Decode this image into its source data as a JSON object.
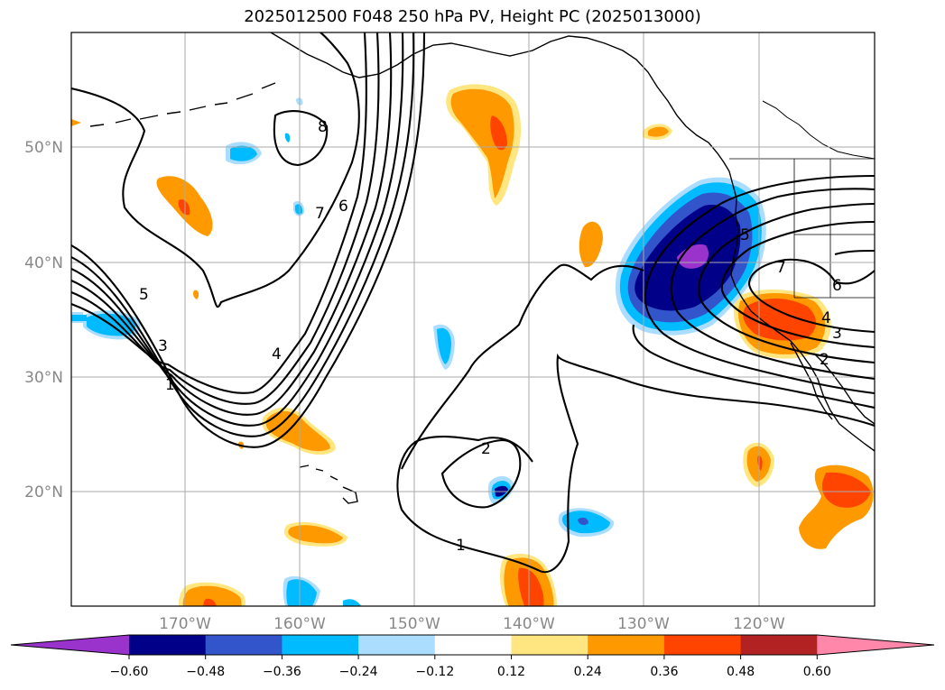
{
  "title": "2025012500 F048 250 hPa PV, Height PC (2025013000)",
  "lon_labels": [
    "170°W",
    "160°W",
    "150°W",
    "140°W",
    "130°W",
    "120°W"
  ],
  "lat_labels": [
    "50°N",
    "40°N",
    "30°N",
    "20°N"
  ],
  "contour_labels": [
    "1",
    "1",
    "2",
    "2",
    "3",
    "3",
    "4",
    "4",
    "5",
    "5",
    "6",
    "6",
    "7",
    "7",
    "8"
  ],
  "colorbar": {
    "ticks": [
      "−0.60",
      "−0.48",
      "−0.36",
      "−0.24",
      "−0.12",
      "0.12",
      "0.24",
      "0.36",
      "0.48",
      "0.60"
    ],
    "colors": [
      "#9933cc",
      "#000088",
      "#3355cc",
      "#00bbff",
      "#aaddff",
      "#ffffff",
      "#ffe680",
      "#ff9900",
      "#ff4400",
      "#b22222",
      "#ff88aa"
    ]
  }
}
